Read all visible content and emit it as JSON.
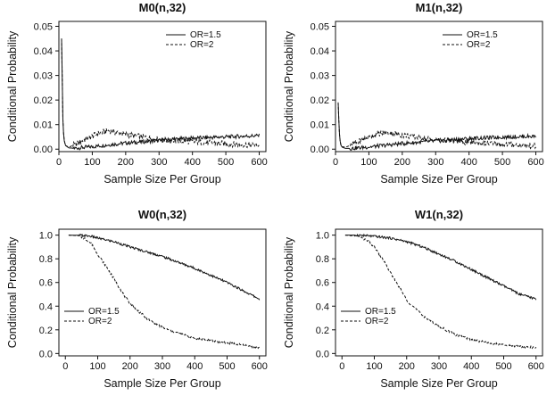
{
  "chart_data": [
    {
      "type": "line",
      "title": "M0(n,32)",
      "xlabel": "Sample Size Per Group",
      "ylabel": "Conditional Probability",
      "xlim": [
        0,
        620
      ],
      "ylim": [
        -0.001,
        0.052
      ],
      "xticks": [
        "0",
        "100",
        "200",
        "300",
        "400",
        "500",
        "600"
      ],
      "yticks": [
        "0.00",
        "0.01",
        "0.02",
        "0.03",
        "0.04",
        "0.05"
      ],
      "legend_position": "top-right",
      "series": [
        {
          "name": "OR=1.5",
          "style": "solid",
          "x": [
            8,
            10,
            12,
            15,
            20,
            30,
            50,
            100,
            150,
            200,
            300,
            400,
            500,
            600
          ],
          "y": [
            0.045,
            0.03,
            0.012,
            0.004,
            0.0015,
            0.0005,
            0.0004,
            0.001,
            0.0018,
            0.0025,
            0.0035,
            0.0045,
            0.005,
            0.0055
          ]
        },
        {
          "name": "OR=2",
          "style": "dashed",
          "x": [
            8,
            10,
            12,
            15,
            20,
            30,
            50,
            80,
            120,
            150,
            200,
            250,
            300,
            400,
            500,
            600
          ],
          "y": [
            0.045,
            0.03,
            0.012,
            0.004,
            0.0015,
            0.0008,
            0.002,
            0.004,
            0.0065,
            0.0075,
            0.006,
            0.005,
            0.004,
            0.003,
            0.0022,
            0.0015
          ]
        }
      ]
    },
    {
      "type": "line",
      "title": "M1(n,32)",
      "xlabel": "Sample Size Per Group",
      "ylabel": "Conditional Probability",
      "xlim": [
        0,
        620
      ],
      "ylim": [
        -0.001,
        0.052
      ],
      "xticks": [
        "0",
        "100",
        "200",
        "300",
        "400",
        "500",
        "600"
      ],
      "yticks": [
        "0.00",
        "0.01",
        "0.02",
        "0.03",
        "0.04",
        "0.05"
      ],
      "legend_position": "top-right",
      "series": [
        {
          "name": "OR=1.5",
          "style": "solid",
          "x": [
            8,
            10,
            12,
            15,
            20,
            30,
            50,
            100,
            150,
            200,
            300,
            400,
            500,
            600
          ],
          "y": [
            0.019,
            0.012,
            0.006,
            0.002,
            0.0008,
            0.0003,
            0.0003,
            0.0009,
            0.0016,
            0.0023,
            0.0033,
            0.0043,
            0.0049,
            0.0053
          ]
        },
        {
          "name": "OR=2",
          "style": "dashed",
          "x": [
            8,
            10,
            12,
            15,
            20,
            30,
            50,
            80,
            120,
            150,
            200,
            250,
            300,
            400,
            500,
            600
          ],
          "y": [
            0.019,
            0.012,
            0.006,
            0.002,
            0.001,
            0.0008,
            0.0018,
            0.0038,
            0.006,
            0.0068,
            0.0058,
            0.0048,
            0.0038,
            0.0028,
            0.002,
            0.0013
          ]
        }
      ]
    },
    {
      "type": "line",
      "title": "W0(n,32)",
      "xlabel": "Sample Size Per Group",
      "ylabel": "Conditional Probability",
      "xlim": [
        -20,
        620
      ],
      "ylim": [
        -0.02,
        1.05
      ],
      "xticks": [
        "0",
        "100",
        "200",
        "300",
        "400",
        "500",
        "600"
      ],
      "yticks": [
        "0.0",
        "0.2",
        "0.4",
        "0.6",
        "0.8",
        "1.0"
      ],
      "legend_position": "bottom-left",
      "series": [
        {
          "name": "OR=1.5",
          "style": "solid",
          "x": [
            10,
            50,
            80,
            100,
            150,
            200,
            250,
            300,
            350,
            400,
            450,
            500,
            550,
            600
          ],
          "y": [
            1.0,
            0.998,
            0.99,
            0.975,
            0.945,
            0.9,
            0.86,
            0.82,
            0.77,
            0.72,
            0.66,
            0.6,
            0.53,
            0.46
          ]
        },
        {
          "name": "OR=2",
          "style": "dashed",
          "x": [
            10,
            40,
            60,
            80,
            100,
            130,
            150,
            180,
            200,
            250,
            300,
            350,
            400,
            450,
            500,
            550,
            600
          ],
          "y": [
            1.0,
            0.995,
            0.97,
            0.93,
            0.84,
            0.72,
            0.63,
            0.5,
            0.42,
            0.3,
            0.22,
            0.17,
            0.13,
            0.11,
            0.09,
            0.07,
            0.05
          ]
        }
      ]
    },
    {
      "type": "line",
      "title": "W1(n,32)",
      "xlabel": "Sample Size Per Group",
      "ylabel": "Conditional Probability",
      "xlim": [
        -20,
        620
      ],
      "ylim": [
        -0.02,
        1.05
      ],
      "xticks": [
        "0",
        "100",
        "200",
        "300",
        "400",
        "500",
        "600"
      ],
      "yticks": [
        "0.0",
        "0.2",
        "0.4",
        "0.6",
        "0.8",
        "1.0"
      ],
      "legend_position": "bottom-left",
      "series": [
        {
          "name": "OR=1.5",
          "style": "solid",
          "x": [
            10,
            50,
            100,
            150,
            200,
            250,
            300,
            350,
            400,
            450,
            500,
            550,
            600
          ],
          "y": [
            1.0,
            1.0,
            0.99,
            0.975,
            0.945,
            0.9,
            0.84,
            0.78,
            0.71,
            0.64,
            0.57,
            0.5,
            0.46
          ]
        },
        {
          "name": "OR=2",
          "style": "dashed",
          "x": [
            10,
            50,
            80,
            100,
            130,
            150,
            180,
            200,
            250,
            300,
            350,
            400,
            450,
            500,
            550,
            600
          ],
          "y": [
            1.0,
            0.99,
            0.95,
            0.9,
            0.78,
            0.68,
            0.55,
            0.45,
            0.32,
            0.23,
            0.16,
            0.12,
            0.09,
            0.07,
            0.06,
            0.05
          ]
        }
      ]
    }
  ]
}
